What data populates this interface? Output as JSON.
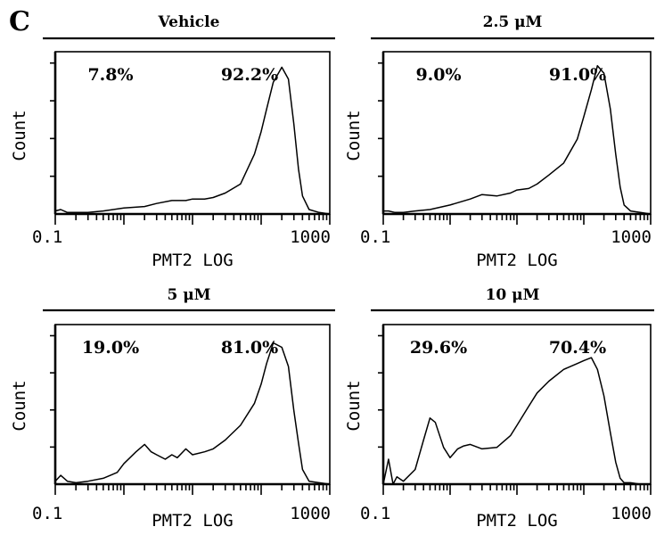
{
  "panel_letter": "C",
  "chart_data": [
    {
      "type": "line",
      "title": "Vehicle",
      "xlabel": "PMT2 LOG",
      "ylabel": "Count",
      "x_scale": "log",
      "xlim": [
        0.1,
        1000
      ],
      "x_tick_labels": [
        "0.1",
        "1000"
      ],
      "ylim": [
        0,
        1
      ],
      "annotations": [
        "7.8%",
        "92.2%"
      ],
      "series": [
        {
          "x": [
            0.1,
            0.12,
            0.15,
            0.2,
            0.3,
            0.5,
            1,
            2,
            3,
            5,
            8,
            10,
            15,
            20,
            30,
            50,
            80,
            100,
            120,
            150,
            200,
            250,
            300,
            350,
            400,
            500,
            700,
            1000
          ],
          "y": [
            0.02,
            0.03,
            0.01,
            0.01,
            0.01,
            0.02,
            0.04,
            0.05,
            0.07,
            0.09,
            0.09,
            0.1,
            0.1,
            0.11,
            0.14,
            0.2,
            0.4,
            0.55,
            0.7,
            0.88,
            0.98,
            0.9,
            0.6,
            0.3,
            0.12,
            0.03,
            0.01,
            0.0
          ]
        }
      ]
    },
    {
      "type": "line",
      "title": "2.5 μM",
      "xlabel": "PMT2 LOG",
      "ylabel": "Count",
      "x_scale": "log",
      "xlim": [
        0.1,
        1000
      ],
      "x_tick_labels": [
        "0.1",
        "1000"
      ],
      "ylim": [
        0,
        1
      ],
      "annotations": [
        "9.0%",
        "91.0%"
      ],
      "series": [
        {
          "x": [
            0.1,
            0.12,
            0.15,
            0.2,
            0.3,
            0.5,
            1,
            2,
            3,
            5,
            8,
            10,
            15,
            20,
            30,
            50,
            80,
            100,
            130,
            160,
            200,
            250,
            300,
            350,
            400,
            500,
            700,
            1000
          ],
          "y": [
            0.02,
            0.02,
            0.01,
            0.01,
            0.02,
            0.03,
            0.06,
            0.1,
            0.13,
            0.12,
            0.14,
            0.16,
            0.17,
            0.2,
            0.26,
            0.34,
            0.5,
            0.65,
            0.83,
            0.99,
            0.94,
            0.7,
            0.4,
            0.18,
            0.06,
            0.02,
            0.01,
            0.0
          ]
        }
      ]
    },
    {
      "type": "line",
      "title": "5 μM",
      "xlabel": "PMT2 LOG",
      "ylabel": "Count",
      "x_scale": "log",
      "xlim": [
        0.1,
        1000
      ],
      "x_tick_labels": [
        "0.1",
        "1000"
      ],
      "ylim": [
        0,
        1
      ],
      "annotations": [
        "19.0%",
        "81.0%"
      ],
      "series": [
        {
          "x": [
            0.1,
            0.12,
            0.15,
            0.2,
            0.3,
            0.5,
            0.8,
            1,
            1.5,
            2,
            2.5,
            3,
            4,
            5,
            6,
            8,
            10,
            15,
            20,
            30,
            50,
            80,
            100,
            120,
            150,
            200,
            250,
            300,
            350,
            400,
            500,
            700,
            1000
          ],
          "y": [
            0.02,
            0.06,
            0.02,
            0.01,
            0.02,
            0.04,
            0.08,
            0.14,
            0.22,
            0.27,
            0.22,
            0.2,
            0.17,
            0.2,
            0.18,
            0.24,
            0.2,
            0.22,
            0.24,
            0.3,
            0.4,
            0.55,
            0.68,
            0.82,
            0.96,
            0.93,
            0.8,
            0.5,
            0.28,
            0.1,
            0.02,
            0.01,
            0.0
          ]
        }
      ]
    },
    {
      "type": "line",
      "title": "10 μM",
      "xlabel": "PMT2 LOG",
      "ylabel": "Count",
      "x_scale": "log",
      "xlim": [
        0.1,
        1000
      ],
      "x_tick_labels": [
        "0.1",
        "1000"
      ],
      "ylim": [
        0,
        1
      ],
      "annotations": [
        "29.6%",
        "70.4%"
      ],
      "series": [
        {
          "x": [
            0.1,
            0.12,
            0.14,
            0.16,
            0.2,
            0.3,
            0.4,
            0.5,
            0.6,
            0.8,
            1,
            1.3,
            1.6,
            2,
            3,
            5,
            8,
            10,
            15,
            20,
            30,
            50,
            80,
            100,
            130,
            160,
            200,
            250,
            300,
            350,
            400,
            500,
            700,
            1000
          ],
          "y": [
            0.0,
            0.17,
            0.0,
            0.05,
            0.02,
            0.1,
            0.3,
            0.45,
            0.42,
            0.25,
            0.18,
            0.24,
            0.26,
            0.27,
            0.24,
            0.25,
            0.33,
            0.4,
            0.53,
            0.62,
            0.7,
            0.78,
            0.82,
            0.84,
            0.86,
            0.78,
            0.6,
            0.35,
            0.15,
            0.04,
            0.01,
            0.01,
            0.0,
            0.0
          ]
        }
      ]
    }
  ]
}
